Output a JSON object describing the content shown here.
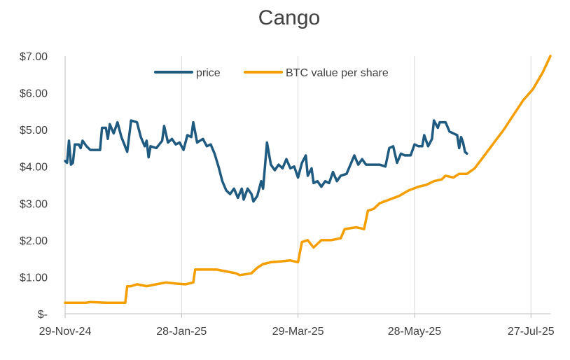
{
  "chart_data": {
    "type": "line",
    "title": "Cango",
    "xlabel": "",
    "ylabel": "",
    "x_axis": {
      "type": "date",
      "range": [
        "2024-11-29",
        "2025-08-06"
      ],
      "ticks": [
        {
          "date": "2024-11-29",
          "label": "29-Nov-24"
        },
        {
          "date": "2025-01-28",
          "label": "28-Jan-25"
        },
        {
          "date": "2025-03-29",
          "label": "29-Mar-25"
        },
        {
          "date": "2025-05-28",
          "label": "28-May-25"
        },
        {
          "date": "2025-07-27",
          "label": "27-Jul-25"
        }
      ]
    },
    "y_axis": {
      "range": [
        0,
        7
      ],
      "ticks": [
        {
          "value": 0,
          "label": "$-"
        },
        {
          "value": 1,
          "label": "$1.00"
        },
        {
          "value": 2,
          "label": "$2.00"
        },
        {
          "value": 3,
          "label": "$3.00"
        },
        {
          "value": 4,
          "label": "$4.00"
        },
        {
          "value": 5,
          "label": "$5.00"
        },
        {
          "value": 6,
          "label": "$6.00"
        },
        {
          "value": 7,
          "label": "$7.00"
        }
      ]
    },
    "grid": {
      "vertical": true,
      "horizontal": false
    },
    "legend_position": "top-center",
    "series": [
      {
        "name": "price",
        "color": "#1f5a80",
        "points": [
          [
            "2024-11-29",
            4.15
          ],
          [
            "2024-11-30",
            4.1
          ],
          [
            "2024-12-01",
            4.7
          ],
          [
            "2024-12-02",
            4.05
          ],
          [
            "2024-12-03",
            4.1
          ],
          [
            "2024-12-04",
            4.6
          ],
          [
            "2024-12-06",
            4.6
          ],
          [
            "2024-12-07",
            4.5
          ],
          [
            "2024-12-08",
            4.7
          ],
          [
            "2024-12-10",
            4.55
          ],
          [
            "2024-12-12",
            4.45
          ],
          [
            "2024-12-15",
            4.45
          ],
          [
            "2024-12-17",
            4.45
          ],
          [
            "2024-12-18",
            5.05
          ],
          [
            "2024-12-20",
            5.05
          ],
          [
            "2024-12-21",
            4.75
          ],
          [
            "2024-12-22",
            5.15
          ],
          [
            "2024-12-24",
            4.9
          ],
          [
            "2024-12-26",
            5.2
          ],
          [
            "2024-12-28",
            4.8
          ],
          [
            "2024-12-31",
            4.4
          ],
          [
            "2025-01-02",
            5.25
          ],
          [
            "2025-01-05",
            5.2
          ],
          [
            "2025-01-07",
            4.8
          ],
          [
            "2025-01-09",
            4.55
          ],
          [
            "2025-01-10",
            4.7
          ],
          [
            "2025-01-11",
            4.25
          ],
          [
            "2025-01-12",
            4.55
          ],
          [
            "2025-01-15",
            4.5
          ],
          [
            "2025-01-18",
            4.7
          ],
          [
            "2025-01-19",
            5.1
          ],
          [
            "2025-01-21",
            4.65
          ],
          [
            "2025-01-23",
            4.75
          ],
          [
            "2025-01-25",
            4.6
          ],
          [
            "2025-01-27",
            4.65
          ],
          [
            "2025-01-29",
            4.45
          ],
          [
            "2025-01-31",
            4.85
          ],
          [
            "2025-02-02",
            4.8
          ],
          [
            "2025-02-03",
            5.2
          ],
          [
            "2025-02-05",
            4.65
          ],
          [
            "2025-02-08",
            4.75
          ],
          [
            "2025-02-10",
            4.55
          ],
          [
            "2025-02-12",
            4.6
          ],
          [
            "2025-02-14",
            4.35
          ],
          [
            "2025-02-16",
            4.0
          ],
          [
            "2025-02-18",
            3.6
          ],
          [
            "2025-02-20",
            3.35
          ],
          [
            "2025-02-22",
            3.25
          ],
          [
            "2025-02-24",
            3.4
          ],
          [
            "2025-02-26",
            3.15
          ],
          [
            "2025-02-28",
            3.4
          ],
          [
            "2025-03-01",
            3.1
          ],
          [
            "2025-03-03",
            3.4
          ],
          [
            "2025-03-05",
            3.25
          ],
          [
            "2025-03-06",
            3.05
          ],
          [
            "2025-03-08",
            3.2
          ],
          [
            "2025-03-10",
            3.6
          ],
          [
            "2025-03-11",
            3.4
          ],
          [
            "2025-03-13",
            4.65
          ],
          [
            "2025-03-15",
            4.05
          ],
          [
            "2025-03-17",
            3.9
          ],
          [
            "2025-03-19",
            4.05
          ],
          [
            "2025-03-21",
            3.95
          ],
          [
            "2025-03-23",
            4.2
          ],
          [
            "2025-03-25",
            3.95
          ],
          [
            "2025-03-27",
            4.0
          ],
          [
            "2025-03-29",
            3.7
          ],
          [
            "2025-03-31",
            4.1
          ],
          [
            "2025-04-02",
            4.3
          ],
          [
            "2025-04-03",
            3.75
          ],
          [
            "2025-04-05",
            3.95
          ],
          [
            "2025-04-06",
            3.55
          ],
          [
            "2025-04-08",
            3.6
          ],
          [
            "2025-04-10",
            3.45
          ],
          [
            "2025-04-12",
            3.6
          ],
          [
            "2025-04-14",
            3.55
          ],
          [
            "2025-04-16",
            3.85
          ],
          [
            "2025-04-18",
            3.6
          ],
          [
            "2025-04-20",
            3.75
          ],
          [
            "2025-04-23",
            3.8
          ],
          [
            "2025-04-25",
            4.05
          ],
          [
            "2025-04-27",
            4.3
          ],
          [
            "2025-04-29",
            4.05
          ],
          [
            "2025-05-01",
            4.2
          ],
          [
            "2025-05-03",
            4.05
          ],
          [
            "2025-05-06",
            4.05
          ],
          [
            "2025-05-10",
            4.05
          ],
          [
            "2025-05-13",
            4.0
          ],
          [
            "2025-05-15",
            4.5
          ],
          [
            "2025-05-17",
            4.55
          ],
          [
            "2025-05-19",
            4.1
          ],
          [
            "2025-05-21",
            4.35
          ],
          [
            "2025-05-23",
            4.3
          ],
          [
            "2025-05-26",
            4.3
          ],
          [
            "2025-05-28",
            4.6
          ],
          [
            "2025-05-30",
            4.55
          ],
          [
            "2025-06-01",
            4.55
          ],
          [
            "2025-06-02",
            4.85
          ],
          [
            "2025-06-04",
            4.55
          ],
          [
            "2025-06-06",
            4.75
          ],
          [
            "2025-06-07",
            5.25
          ],
          [
            "2025-06-09",
            5.05
          ],
          [
            "2025-06-10",
            5.2
          ],
          [
            "2025-06-13",
            5.2
          ],
          [
            "2025-06-15",
            4.95
          ],
          [
            "2025-06-17",
            4.9
          ],
          [
            "2025-06-19",
            4.85
          ],
          [
            "2025-06-20",
            4.5
          ],
          [
            "2025-06-21",
            4.8
          ],
          [
            "2025-06-22",
            4.65
          ],
          [
            "2025-06-23",
            4.4
          ],
          [
            "2025-06-24",
            4.35
          ]
        ]
      },
      {
        "name": "BTC value per share",
        "color": "#f59e00",
        "points": [
          [
            "2024-11-29",
            0.3
          ],
          [
            "2024-12-10",
            0.3
          ],
          [
            "2024-12-12",
            0.32
          ],
          [
            "2024-12-20",
            0.3
          ],
          [
            "2024-12-29",
            0.3
          ],
          [
            "2024-12-30",
            0.3
          ],
          [
            "2024-12-31",
            0.75
          ],
          [
            "2025-01-02",
            0.75
          ],
          [
            "2025-01-05",
            0.8
          ],
          [
            "2025-01-10",
            0.75
          ],
          [
            "2025-01-15",
            0.8
          ],
          [
            "2025-01-20",
            0.85
          ],
          [
            "2025-01-25",
            0.82
          ],
          [
            "2025-01-30",
            0.8
          ],
          [
            "2025-02-03",
            0.85
          ],
          [
            "2025-02-04",
            1.2
          ],
          [
            "2025-02-10",
            1.2
          ],
          [
            "2025-02-15",
            1.2
          ],
          [
            "2025-02-20",
            1.15
          ],
          [
            "2025-02-25",
            1.1
          ],
          [
            "2025-02-27",
            1.05
          ],
          [
            "2025-03-05",
            1.1
          ],
          [
            "2025-03-08",
            1.25
          ],
          [
            "2025-03-11",
            1.35
          ],
          [
            "2025-03-15",
            1.4
          ],
          [
            "2025-03-20",
            1.42
          ],
          [
            "2025-03-25",
            1.45
          ],
          [
            "2025-03-29",
            1.4
          ],
          [
            "2025-03-31",
            1.95
          ],
          [
            "2025-04-03",
            2.0
          ],
          [
            "2025-04-06",
            1.8
          ],
          [
            "2025-04-10",
            2.0
          ],
          [
            "2025-04-15",
            2.0
          ],
          [
            "2025-04-20",
            2.05
          ],
          [
            "2025-04-22",
            2.3
          ],
          [
            "2025-04-28",
            2.35
          ],
          [
            "2025-05-02",
            2.3
          ],
          [
            "2025-05-04",
            2.8
          ],
          [
            "2025-05-07",
            2.85
          ],
          [
            "2025-05-10",
            3.0
          ],
          [
            "2025-05-15",
            3.1
          ],
          [
            "2025-05-20",
            3.2
          ],
          [
            "2025-05-25",
            3.35
          ],
          [
            "2025-05-30",
            3.45
          ],
          [
            "2025-06-03",
            3.5
          ],
          [
            "2025-06-07",
            3.6
          ],
          [
            "2025-06-11",
            3.65
          ],
          [
            "2025-06-13",
            3.75
          ],
          [
            "2025-06-17",
            3.7
          ],
          [
            "2025-06-20",
            3.8
          ],
          [
            "2025-06-24",
            3.8
          ],
          [
            "2025-06-28",
            3.95
          ],
          [
            "2025-07-03",
            4.3
          ],
          [
            "2025-07-08",
            4.65
          ],
          [
            "2025-07-13",
            5.0
          ],
          [
            "2025-07-18",
            5.4
          ],
          [
            "2025-07-23",
            5.8
          ],
          [
            "2025-07-28",
            6.1
          ],
          [
            "2025-08-02",
            6.55
          ],
          [
            "2025-08-06",
            7.0
          ]
        ]
      }
    ]
  }
}
